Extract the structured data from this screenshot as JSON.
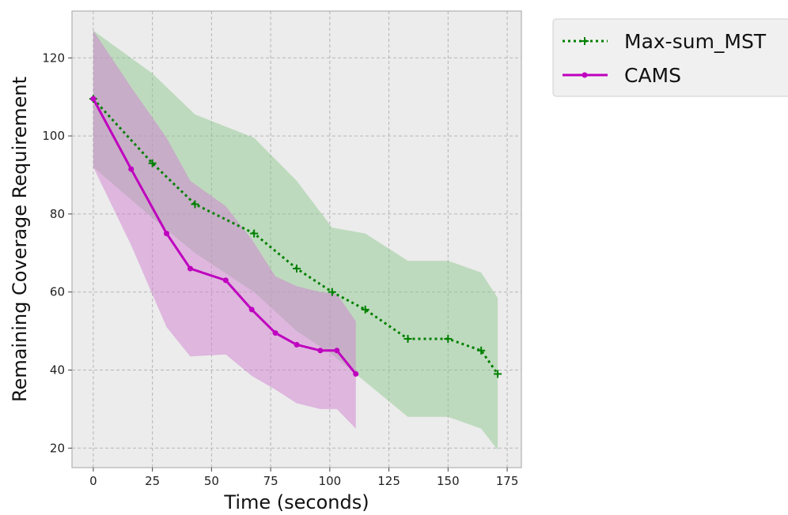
{
  "chart_data": {
    "type": "line",
    "title": "",
    "xlabel": "Time (seconds)",
    "ylabel": "Remaining Coverage Requirement",
    "xlim": [
      -9,
      181
    ],
    "ylim": [
      15,
      132
    ],
    "xticks": [
      0,
      25,
      50,
      75,
      100,
      125,
      150,
      175
    ],
    "yticks": [
      20,
      40,
      60,
      80,
      100,
      120
    ],
    "xtick_labels": [
      "0",
      "25",
      "50",
      "75",
      "100",
      "125",
      "150",
      "175"
    ],
    "ytick_labels": [
      "20",
      "40",
      "60",
      "80",
      "100",
      "120"
    ],
    "grid": true,
    "legend_position": "outside top-right",
    "background_color": "#ececec",
    "series": [
      {
        "name": "Max-sum_MST",
        "color": "#008000",
        "band_color": "#90c890",
        "line_style": "dotted",
        "marker": "plus",
        "x": [
          0,
          25,
          43,
          68,
          86,
          101,
          115,
          133,
          150,
          164,
          171
        ],
        "y": [
          109.5,
          93,
          82.5,
          75,
          66,
          60,
          55.5,
          48,
          48,
          45,
          39
        ],
        "upper": [
          127,
          116,
          105.5,
          99.5,
          88.5,
          76.5,
          75,
          68,
          68,
          65,
          58.5
        ],
        "lower": [
          92,
          79,
          70,
          60,
          50,
          44,
          37,
          28,
          28,
          25,
          19.5
        ]
      },
      {
        "name": "CAMS",
        "color": "#bf00bf",
        "band_color": "#d080d0",
        "line_style": "solid",
        "marker": "dot",
        "x": [
          0,
          16,
          31,
          41,
          56,
          67,
          77,
          86,
          96,
          103,
          111
        ],
        "y": [
          109.5,
          91.5,
          75,
          66,
          63,
          55.5,
          49.5,
          46.5,
          45,
          45,
          39
        ],
        "upper": [
          127,
          112.5,
          99.5,
          88.5,
          82,
          73.5,
          64,
          61.5,
          60,
          59.5,
          52.5
        ],
        "lower": [
          92,
          72,
          51,
          43.5,
          44,
          38.5,
          35,
          31.5,
          30,
          30,
          25
        ]
      }
    ]
  }
}
